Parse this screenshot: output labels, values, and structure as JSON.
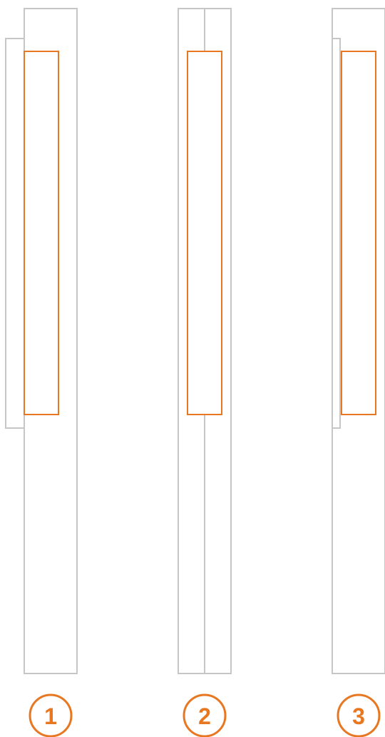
{
  "colors": {
    "outline": "#c6c6c6",
    "accent": "#e87722",
    "background": "#ffffff"
  },
  "options": [
    {
      "number": "1",
      "variant": "offset-side-panel"
    },
    {
      "number": "2",
      "variant": "center-split"
    },
    {
      "number": "3",
      "variant": "inset-side-panel"
    }
  ]
}
